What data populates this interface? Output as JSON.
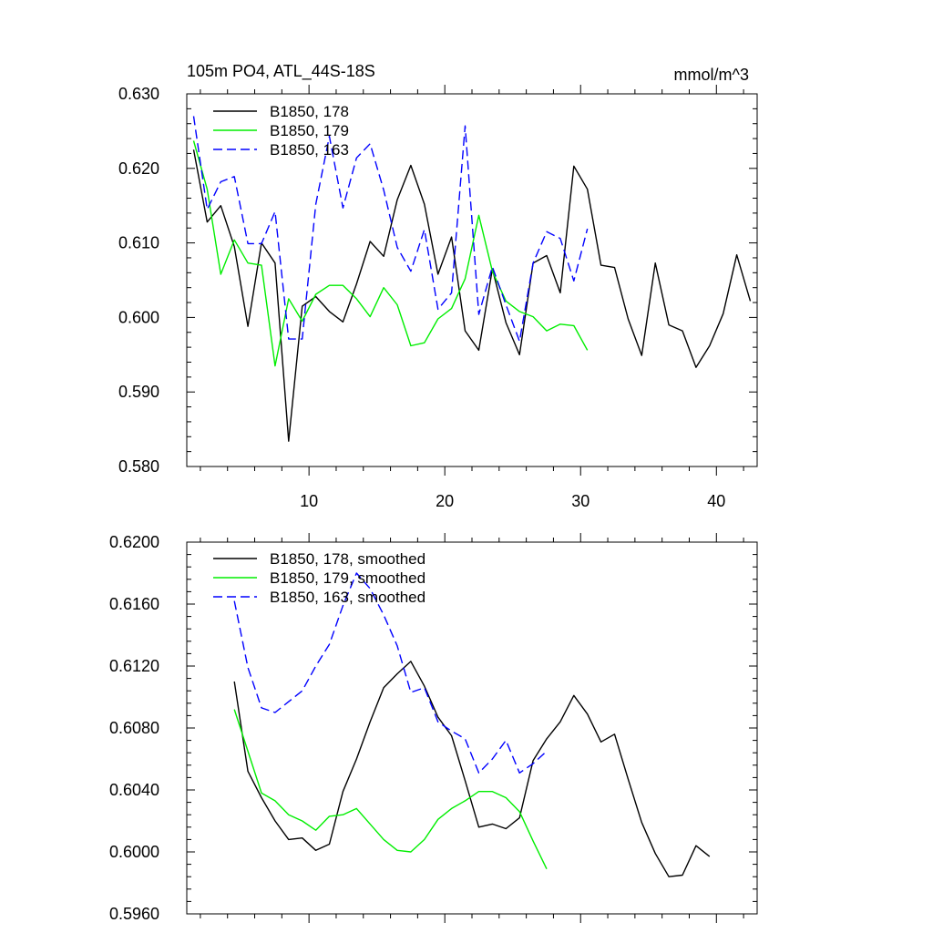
{
  "chart_data": [
    {
      "type": "line",
      "title": "105m PO4, ATL_44S-18S",
      "units": "mmol/m^3",
      "xlabel": "",
      "ylabel": "",
      "xlim": [
        1,
        43
      ],
      "ylim": [
        0.58,
        0.63
      ],
      "x_ticks": [
        10,
        20,
        30,
        40
      ],
      "x_tick_labels": [
        "10",
        "20",
        "30",
        "40"
      ],
      "y_ticks": [
        0.58,
        0.59,
        0.6,
        0.61,
        0.62,
        0.63
      ],
      "y_tick_labels": [
        "0.580",
        "0.590",
        "0.600",
        "0.610",
        "0.620",
        "0.630"
      ],
      "legend_position": "top-left",
      "series": [
        {
          "name": "B1850, 178",
          "color": "#000000",
          "dash": "solid",
          "x": [
            1.5,
            2.5,
            3.5,
            4.5,
            5.5,
            6.5,
            7.5,
            8.5,
            9.5,
            10.5,
            11.5,
            12.5,
            13.5,
            14.5,
            15.5,
            16.5,
            17.5,
            18.5,
            19.5,
            20.5,
            21.5,
            22.5,
            23.5,
            24.5,
            25.5,
            26.5,
            27.5,
            28.5,
            29.5,
            30.5,
            31.5,
            32.5,
            33.5,
            34.5,
            35.5,
            36.5,
            37.5,
            38.5,
            39.5,
            40.5,
            41.5,
            42.5
          ],
          "values": [
            0.6225,
            0.6128,
            0.615,
            0.6095,
            0.5988,
            0.61,
            0.6073,
            0.5834,
            0.6015,
            0.6028,
            0.6008,
            0.5994,
            0.6045,
            0.6102,
            0.6082,
            0.6158,
            0.6204,
            0.6152,
            0.6058,
            0.6108,
            0.5982,
            0.5956,
            0.6065,
            0.5993,
            0.595,
            0.6073,
            0.6083,
            0.6033,
            0.6203,
            0.6172,
            0.607,
            0.6067,
            0.5998,
            0.5949,
            0.6073,
            0.599,
            0.5982,
            0.5933,
            0.5962,
            0.6005,
            0.6084,
            0.6022
          ]
        },
        {
          "name": "B1850, 179",
          "color": "#00ee00",
          "dash": "solid",
          "x": [
            1.5,
            2.5,
            3.5,
            4.5,
            5.5,
            6.5,
            7.5,
            8.5,
            9.5,
            10.5,
            11.5,
            12.5,
            13.5,
            14.5,
            15.5,
            16.5,
            17.5,
            18.5,
            19.5,
            20.5,
            21.5,
            22.5,
            23.5,
            24.5,
            25.5,
            26.5,
            27.5,
            28.5,
            29.5,
            30.5
          ],
          "values": [
            0.6237,
            0.6172,
            0.6058,
            0.6104,
            0.6073,
            0.607,
            0.5935,
            0.6025,
            0.5995,
            0.6031,
            0.6043,
            0.6043,
            0.6025,
            0.6001,
            0.604,
            0.6017,
            0.5962,
            0.5966,
            0.5998,
            0.6012,
            0.6052,
            0.6137,
            0.6062,
            0.6022,
            0.6008,
            0.6001,
            0.5982,
            0.5991,
            0.5989,
            0.5956
          ]
        },
        {
          "name": "B1850, 163",
          "color": "#0000ff",
          "dash": "dashed",
          "x": [
            1.5,
            2.5,
            3.5,
            4.5,
            5.5,
            6.5,
            7.5,
            8.5,
            9.5,
            10.5,
            11.5,
            12.5,
            13.5,
            14.5,
            15.5,
            16.5,
            17.5,
            18.5,
            19.5,
            20.5,
            21.5,
            22.5,
            23.5,
            24.5,
            25.5,
            26.5,
            27.5,
            28.5,
            29.5,
            30.5
          ],
          "values": [
            0.627,
            0.6145,
            0.6182,
            0.6189,
            0.6099,
            0.6099,
            0.6142,
            0.5971,
            0.5971,
            0.6152,
            0.6243,
            0.6147,
            0.6214,
            0.6233,
            0.6171,
            0.6094,
            0.6062,
            0.6118,
            0.6011,
            0.6033,
            0.6257,
            0.6004,
            0.6068,
            0.6017,
            0.5968,
            0.6073,
            0.6115,
            0.6106,
            0.6049,
            0.6119
          ]
        }
      ]
    },
    {
      "type": "line",
      "title": "",
      "xlabel": "",
      "ylabel": "",
      "xlim": [
        1,
        43
      ],
      "ylim": [
        0.596,
        0.62
      ],
      "x_ticks": [
        10,
        20,
        30,
        40
      ],
      "x_tick_labels": [],
      "y_ticks": [
        0.596,
        0.6,
        0.604,
        0.608,
        0.612,
        0.616,
        0.62
      ],
      "y_tick_labels": [
        "0.5960",
        "0.6000",
        "0.6040",
        "0.6080",
        "0.6120",
        "0.6160",
        "0.6200"
      ],
      "legend_position": "top-left",
      "series": [
        {
          "name": "B1850, 178, smoothed",
          "color": "#000000",
          "dash": "solid",
          "x": [
            4.5,
            5.5,
            6.5,
            7.5,
            8.5,
            9.5,
            10.5,
            11.5,
            12.5,
            13.5,
            14.5,
            15.5,
            16.5,
            17.5,
            18.5,
            19.5,
            20.5,
            21.5,
            22.5,
            23.5,
            24.5,
            25.5,
            26.5,
            27.5,
            28.5,
            29.5,
            30.5,
            31.5,
            32.5,
            33.5,
            34.5,
            35.5,
            36.5,
            37.5,
            38.5,
            39.5
          ],
          "values": [
            0.611,
            0.6052,
            0.6035,
            0.602,
            0.6008,
            0.6009,
            0.6001,
            0.6005,
            0.6039,
            0.606,
            0.6084,
            0.6106,
            0.6115,
            0.6123,
            0.6107,
            0.6087,
            0.6075,
            0.6046,
            0.6016,
            0.6018,
            0.6015,
            0.6022,
            0.6059,
            0.6073,
            0.6084,
            0.6101,
            0.6089,
            0.6071,
            0.6076,
            0.6047,
            0.6019,
            0.5999,
            0.5984,
            0.5985,
            0.6004,
            0.5997
          ]
        },
        {
          "name": "B1850, 179, smoothed",
          "color": "#00ee00",
          "dash": "solid",
          "x": [
            4.5,
            5.5,
            6.5,
            7.5,
            8.5,
            9.5,
            10.5,
            11.5,
            12.5,
            13.5,
            14.5,
            15.5,
            16.5,
            17.5,
            18.5,
            19.5,
            20.5,
            21.5,
            22.5,
            23.5,
            24.5,
            25.5,
            26.5,
            27.5
          ],
          "values": [
            0.6092,
            0.6065,
            0.6038,
            0.6033,
            0.6024,
            0.602,
            0.6014,
            0.6023,
            0.6024,
            0.6028,
            0.6018,
            0.6008,
            0.6001,
            0.6,
            0.6008,
            0.6021,
            0.6028,
            0.6033,
            0.6039,
            0.6039,
            0.6035,
            0.6026,
            0.6007,
            0.5989
          ]
        },
        {
          "name": "B1850, 163, smoothed",
          "color": "#0000ff",
          "dash": "dashed",
          "x": [
            4.5,
            5.5,
            6.5,
            7.5,
            8.5,
            9.5,
            10.5,
            11.5,
            12.5,
            13.5,
            14.5,
            15.5,
            16.5,
            17.5,
            18.5,
            19.5,
            20.5,
            21.5,
            22.5,
            23.5,
            24.5,
            25.5,
            26.5,
            27.5
          ],
          "values": [
            0.6162,
            0.6119,
            0.6093,
            0.609,
            0.6097,
            0.6104,
            0.612,
            0.6134,
            0.6159,
            0.618,
            0.617,
            0.6153,
            0.6133,
            0.6103,
            0.6106,
            0.6084,
            0.6078,
            0.6073,
            0.6051,
            0.606,
            0.6072,
            0.6051,
            0.6057,
            0.6065
          ]
        }
      ]
    }
  ]
}
